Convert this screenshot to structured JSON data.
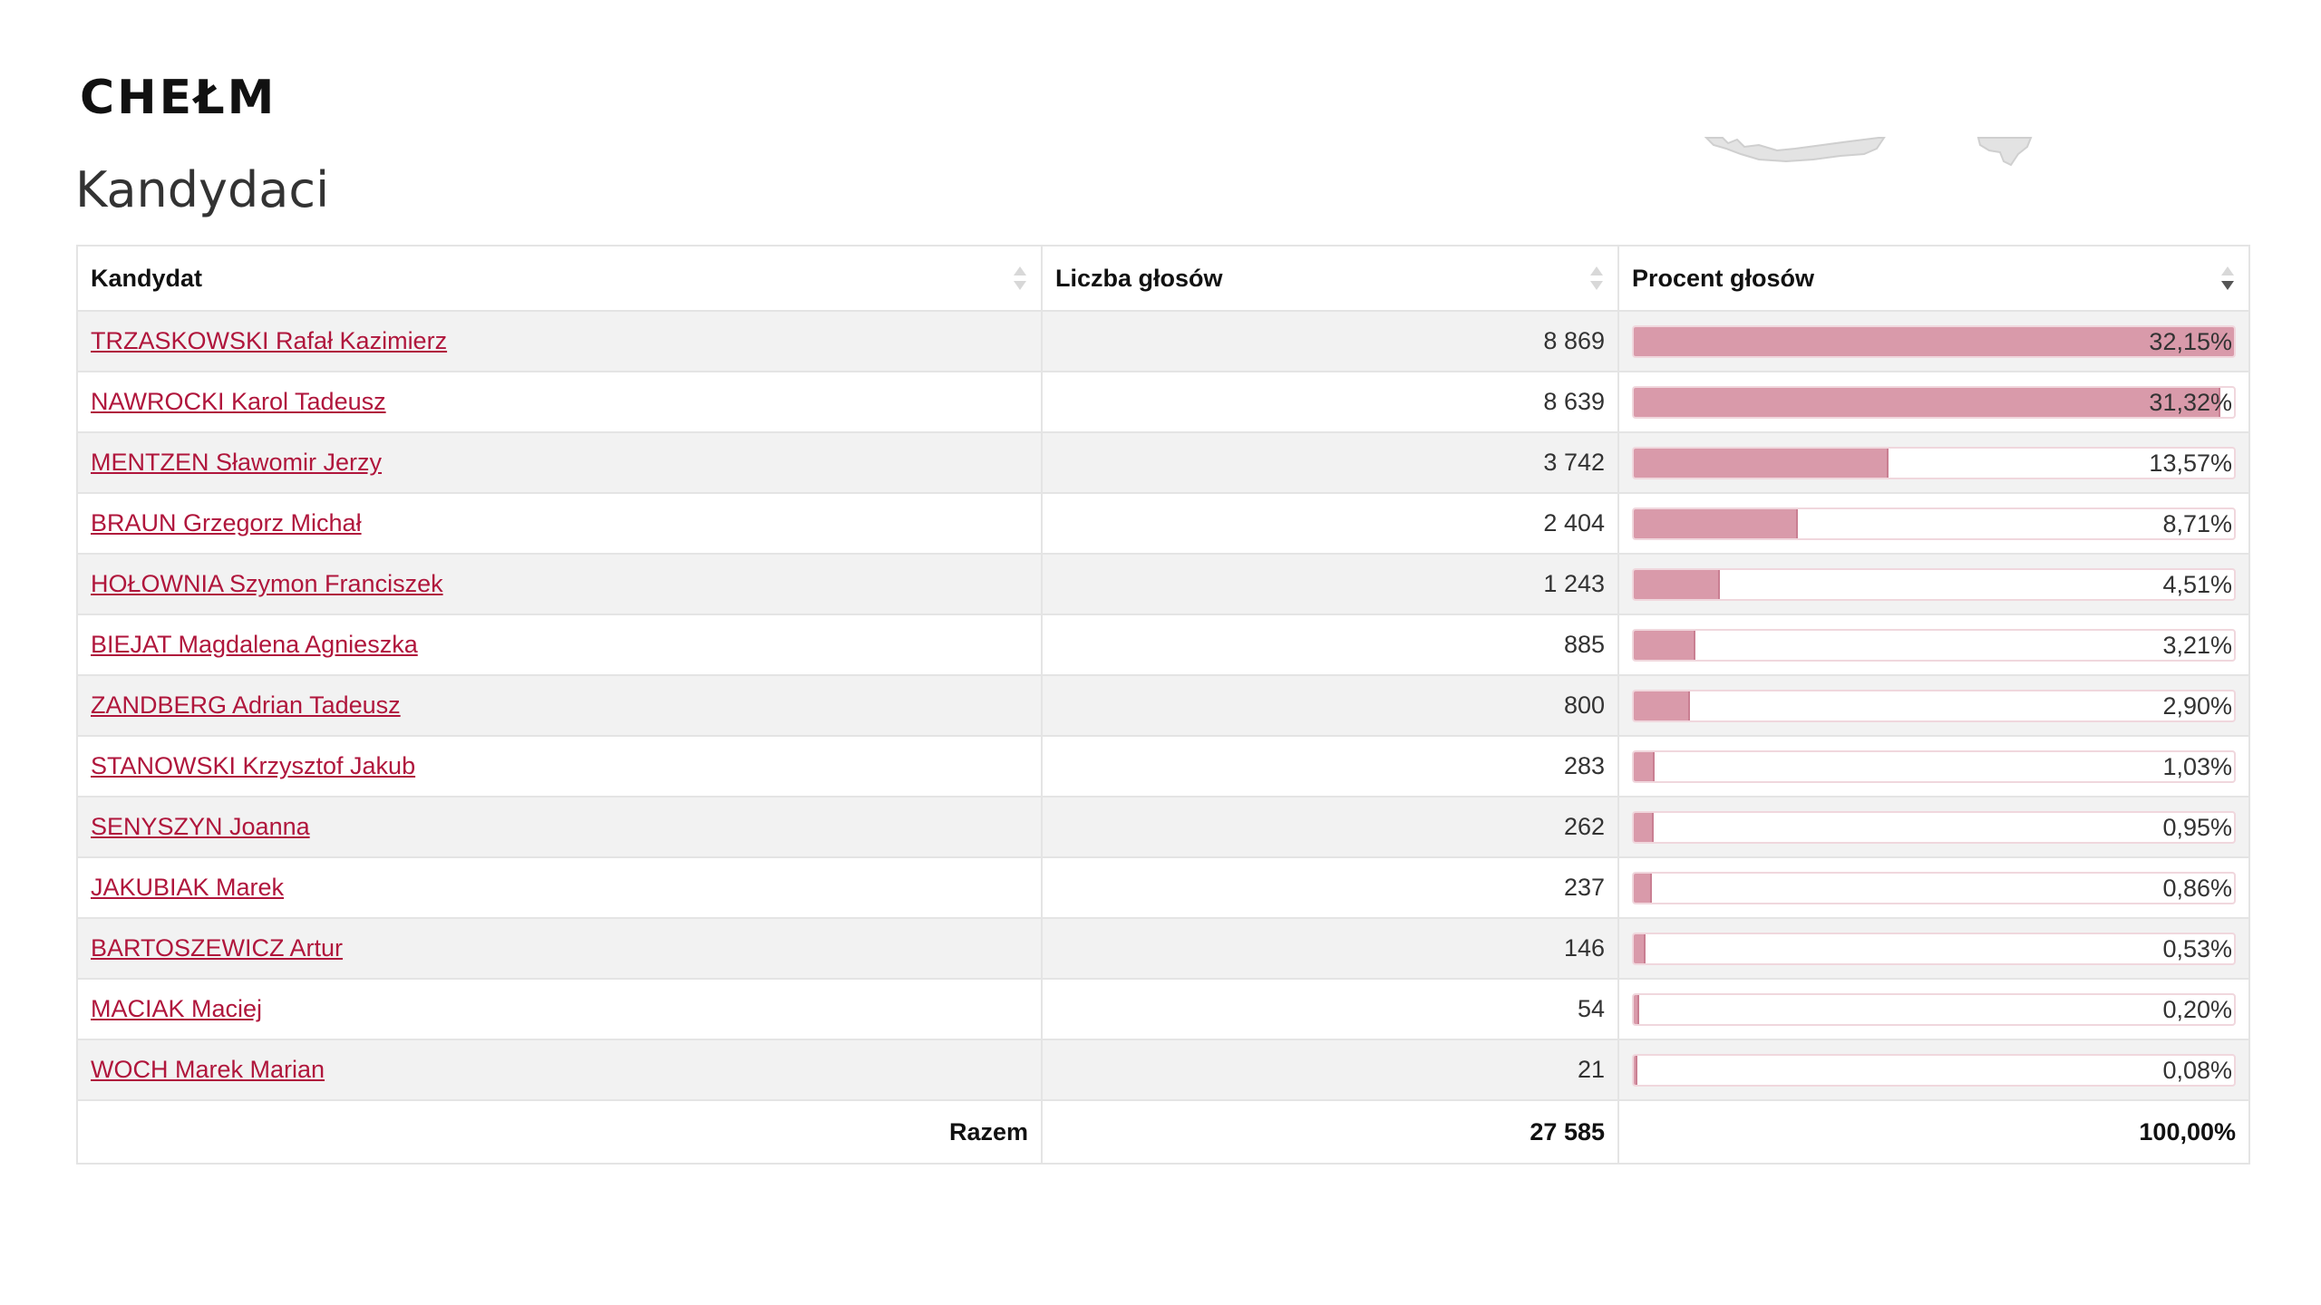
{
  "page": {
    "city": "CHEŁM",
    "section_title": "Kandydaci"
  },
  "table": {
    "headers": {
      "candidate": "Kandydat",
      "votes": "Liczba głosów",
      "percent": "Procent głosów"
    },
    "sorted_column": "percent",
    "sort_direction": "descending",
    "rows": [
      {
        "name": "TRZASKOWSKI Rafał Kazimierz",
        "votes": "8 869",
        "percent_label": "32,15%",
        "percent": 32.15
      },
      {
        "name": "NAWROCKI Karol Tadeusz",
        "votes": "8 639",
        "percent_label": "31,32%",
        "percent": 31.32
      },
      {
        "name": "MENTZEN Sławomir Jerzy",
        "votes": "3 742",
        "percent_label": "13,57%",
        "percent": 13.57
      },
      {
        "name": "BRAUN Grzegorz Michał",
        "votes": "2 404",
        "percent_label": "8,71%",
        "percent": 8.71
      },
      {
        "name": "HOŁOWNIA Szymon Franciszek",
        "votes": "1 243",
        "percent_label": "4,51%",
        "percent": 4.51
      },
      {
        "name": "BIEJAT Magdalena Agnieszka",
        "votes": "885",
        "percent_label": "3,21%",
        "percent": 3.21
      },
      {
        "name": "ZANDBERG Adrian Tadeusz",
        "votes": "800",
        "percent_label": "2,90%",
        "percent": 2.9
      },
      {
        "name": "STANOWSKI Krzysztof Jakub",
        "votes": "283",
        "percent_label": "1,03%",
        "percent": 1.03
      },
      {
        "name": "SENYSZYN Joanna",
        "votes": "262",
        "percent_label": "0,95%",
        "percent": 0.95
      },
      {
        "name": "JAKUBIAK Marek",
        "votes": "237",
        "percent_label": "0,86%",
        "percent": 0.86
      },
      {
        "name": "BARTOSZEWICZ Artur",
        "votes": "146",
        "percent_label": "0,53%",
        "percent": 0.53
      },
      {
        "name": "MACIAK Maciej",
        "votes": "54",
        "percent_label": "0,20%",
        "percent": 0.2
      },
      {
        "name": "WOCH Marek Marian",
        "votes": "21",
        "percent_label": "0,08%",
        "percent": 0.08
      }
    ],
    "bar_scale_max_percent": 32.15,
    "footer": {
      "label": "Razem",
      "votes": "27 585",
      "percent": "100,00%"
    }
  },
  "colors": {
    "link": "#b0163c",
    "bar_fill": "#d99aaa",
    "bar_border": "#f0d7dd",
    "row_stripe": "#f2f2f2",
    "map_fill": "#e3e3e3"
  },
  "icons": {
    "sort": "sort-arrows-icon",
    "map": "map-fragment-icon"
  }
}
